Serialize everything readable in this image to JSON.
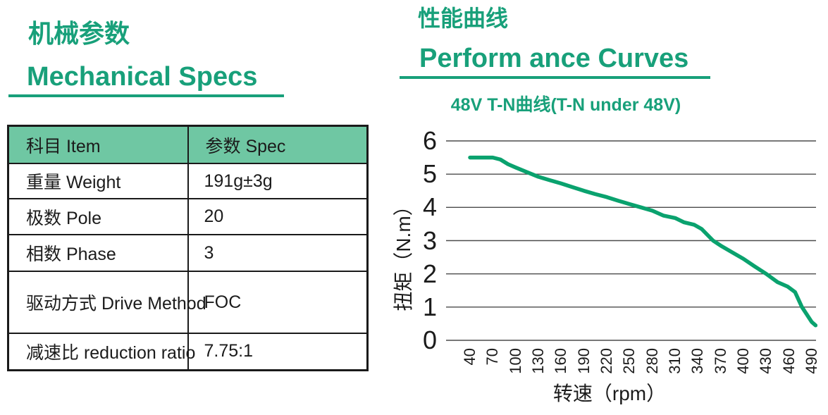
{
  "left_panel": {
    "title_cn": "机械参数",
    "title_en": "Mechanical Specs",
    "table": {
      "headers": [
        "科目 Item",
        "参数 Spec"
      ],
      "rows": [
        [
          "重量 Weight",
          "191g±3g"
        ],
        [
          "极数 Pole",
          "20"
        ],
        [
          "相数 Phase",
          "3"
        ],
        [
          "驱动方式 Drive Method",
          "FOC"
        ],
        [
          "减速比 reduction ratio",
          "7.75:1"
        ]
      ]
    }
  },
  "right_panel": {
    "title_cn": "性能曲线",
    "title_en": "Perform ance Curves"
  },
  "chart_data": {
    "type": "line",
    "title": "48V T-N曲线(T-N under 48V)",
    "xlabel": "转速（rpm）",
    "ylabel": "扭矩（N.m）",
    "x_ticks": [
      40,
      70,
      100,
      130,
      160,
      190,
      220,
      250,
      280,
      310,
      340,
      370,
      400,
      430,
      460,
      490
    ],
    "y_ticks": [
      0,
      1,
      2,
      3,
      4,
      5,
      6
    ],
    "xlim": [
      8,
      496
    ],
    "ylim": [
      0,
      6
    ],
    "grid": "horizontal",
    "legend_position": "none",
    "series": [
      {
        "name": "48V T-N",
        "color": "#0aa26e",
        "points": [
          [
            40,
            5.5
          ],
          [
            70,
            5.5
          ],
          [
            80,
            5.44
          ],
          [
            90,
            5.3
          ],
          [
            100,
            5.2
          ],
          [
            115,
            5.06
          ],
          [
            130,
            4.92
          ],
          [
            145,
            4.82
          ],
          [
            160,
            4.72
          ],
          [
            175,
            4.61
          ],
          [
            190,
            4.5
          ],
          [
            205,
            4.4
          ],
          [
            220,
            4.31
          ],
          [
            235,
            4.2
          ],
          [
            250,
            4.1
          ],
          [
            265,
            4.0
          ],
          [
            280,
            3.9
          ],
          [
            295,
            3.75
          ],
          [
            310,
            3.68
          ],
          [
            322,
            3.55
          ],
          [
            335,
            3.48
          ],
          [
            345,
            3.35
          ],
          [
            360,
            3.0
          ],
          [
            370,
            2.85
          ],
          [
            385,
            2.65
          ],
          [
            400,
            2.45
          ],
          [
            415,
            2.22
          ],
          [
            430,
            2.0
          ],
          [
            445,
            1.75
          ],
          [
            458,
            1.62
          ],
          [
            468,
            1.45
          ],
          [
            477,
            1.0
          ],
          [
            490,
            0.55
          ],
          [
            495,
            0.45
          ]
        ]
      }
    ]
  },
  "colors": {
    "heading_green": "#18a07a",
    "underline_green": "#18a07a",
    "table_header_bg": "#6fc7a3",
    "curve_green": "#0aa26e",
    "gridline": "#4b4b4b",
    "text": "#1b1b1b"
  }
}
